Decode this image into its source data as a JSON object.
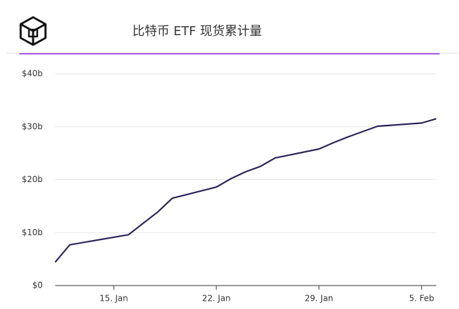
{
  "chart_data": {
    "type": "line",
    "title": "比特币 ETF 现货累计量",
    "x": [
      "11. Jan",
      "12. Jan",
      "16. Jan",
      "18. Jan",
      "19. Jan",
      "22. Jan",
      "23. Jan",
      "24. Jan",
      "25. Jan",
      "26. Jan",
      "29. Jan",
      "30. Jan",
      "31. Jan",
      "2. Feb",
      "5. Feb",
      "6. Feb"
    ],
    "series": [
      {
        "name": "比特币 ETF 现货累计量",
        "color": "#2b2358",
        "values": [
          4.4,
          7.7,
          9.6,
          13.9,
          16.5,
          18.6,
          20.2,
          21.5,
          22.5,
          24.1,
          25.8,
          27.0,
          28.1,
          30.1,
          30.7,
          31.5
        ]
      }
    ],
    "xlim": [
      "11. Jan",
      "6. Feb"
    ],
    "xticks": [
      "15. Jan",
      "22. Jan",
      "29. Jan",
      "5. Feb"
    ],
    "ylim": [
      0,
      40
    ],
    "yticks": [
      {
        "value": 0,
        "label": "$0"
      },
      {
        "value": 10,
        "label": "$10b"
      },
      {
        "value": 20,
        "label": "$20b"
      },
      {
        "value": 30,
        "label": "$30b"
      },
      {
        "value": 40,
        "label": "$40b"
      }
    ],
    "grid": true
  }
}
